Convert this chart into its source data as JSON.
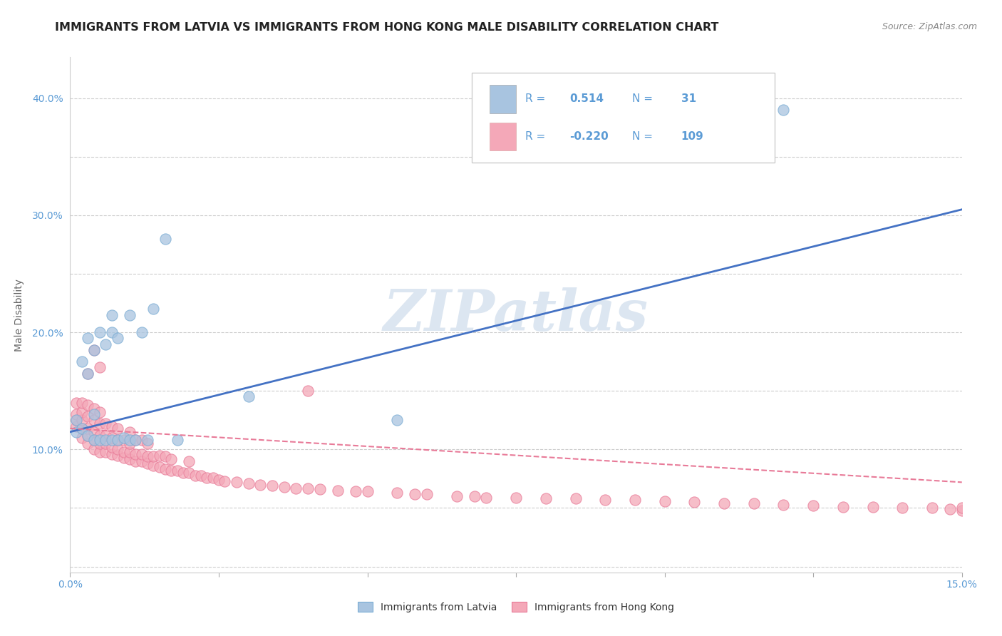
{
  "title": "IMMIGRANTS FROM LATVIA VS IMMIGRANTS FROM HONG KONG MALE DISABILITY CORRELATION CHART",
  "source_text": "Source: ZipAtlas.com",
  "ylabel": "Male Disability",
  "xlim": [
    0.0,
    0.15
  ],
  "ylim": [
    -0.005,
    0.435
  ],
  "xticks": [
    0.0,
    0.025,
    0.05,
    0.075,
    0.1,
    0.125,
    0.15
  ],
  "yticks": [
    0.0,
    0.05,
    0.1,
    0.15,
    0.2,
    0.25,
    0.3,
    0.35,
    0.4
  ],
  "latvia_color": "#a8c4e0",
  "latvia_edge": "#7aadd4",
  "hk_color": "#f4a8b8",
  "hk_edge": "#e87a98",
  "trend_latvia_color": "#4472c4",
  "trend_hk_color": "#e87a98",
  "legend_r_latvia": "0.514",
  "legend_n_latvia": "31",
  "legend_r_hk": "-0.220",
  "legend_n_hk": "109",
  "trend_latvia_x0": 0.0,
  "trend_latvia_y0": 0.115,
  "trend_latvia_x1": 0.15,
  "trend_latvia_y1": 0.305,
  "trend_hk_x0": 0.0,
  "trend_hk_y0": 0.118,
  "trend_hk_x1": 0.15,
  "trend_hk_y1": 0.072,
  "latvia_x": [
    0.001,
    0.001,
    0.002,
    0.002,
    0.003,
    0.003,
    0.003,
    0.004,
    0.004,
    0.004,
    0.005,
    0.005,
    0.006,
    0.006,
    0.007,
    0.007,
    0.007,
    0.008,
    0.008,
    0.009,
    0.01,
    0.01,
    0.011,
    0.012,
    0.013,
    0.014,
    0.016,
    0.018,
    0.03,
    0.055,
    0.12
  ],
  "latvia_y": [
    0.115,
    0.125,
    0.118,
    0.175,
    0.112,
    0.165,
    0.195,
    0.108,
    0.13,
    0.185,
    0.108,
    0.2,
    0.108,
    0.19,
    0.108,
    0.2,
    0.215,
    0.108,
    0.195,
    0.11,
    0.108,
    0.215,
    0.108,
    0.2,
    0.108,
    0.22,
    0.28,
    0.108,
    0.145,
    0.125,
    0.39
  ],
  "hk_x": [
    0.001,
    0.001,
    0.001,
    0.001,
    0.002,
    0.002,
    0.002,
    0.002,
    0.002,
    0.003,
    0.003,
    0.003,
    0.003,
    0.003,
    0.004,
    0.004,
    0.004,
    0.004,
    0.004,
    0.005,
    0.005,
    0.005,
    0.005,
    0.005,
    0.006,
    0.006,
    0.006,
    0.006,
    0.007,
    0.007,
    0.007,
    0.007,
    0.008,
    0.008,
    0.008,
    0.008,
    0.009,
    0.009,
    0.009,
    0.01,
    0.01,
    0.01,
    0.01,
    0.011,
    0.011,
    0.011,
    0.012,
    0.012,
    0.012,
    0.013,
    0.013,
    0.013,
    0.014,
    0.014,
    0.015,
    0.015,
    0.016,
    0.016,
    0.017,
    0.017,
    0.018,
    0.019,
    0.02,
    0.02,
    0.021,
    0.022,
    0.023,
    0.024,
    0.025,
    0.026,
    0.028,
    0.03,
    0.032,
    0.034,
    0.036,
    0.038,
    0.04,
    0.042,
    0.045,
    0.048,
    0.05,
    0.055,
    0.058,
    0.06,
    0.065,
    0.068,
    0.07,
    0.075,
    0.08,
    0.085,
    0.09,
    0.095,
    0.1,
    0.105,
    0.11,
    0.115,
    0.12,
    0.125,
    0.13,
    0.135,
    0.14,
    0.145,
    0.148,
    0.15,
    0.15,
    0.003,
    0.004,
    0.005,
    0.04
  ],
  "hk_y": [
    0.12,
    0.125,
    0.13,
    0.14,
    0.11,
    0.118,
    0.125,
    0.132,
    0.14,
    0.105,
    0.112,
    0.118,
    0.128,
    0.138,
    0.1,
    0.108,
    0.115,
    0.125,
    0.135,
    0.098,
    0.105,
    0.112,
    0.122,
    0.132,
    0.098,
    0.105,
    0.112,
    0.122,
    0.096,
    0.102,
    0.11,
    0.12,
    0.095,
    0.1,
    0.108,
    0.118,
    0.093,
    0.098,
    0.108,
    0.092,
    0.098,
    0.105,
    0.115,
    0.09,
    0.096,
    0.108,
    0.09,
    0.096,
    0.108,
    0.088,
    0.094,
    0.105,
    0.086,
    0.094,
    0.085,
    0.095,
    0.083,
    0.094,
    0.082,
    0.092,
    0.082,
    0.08,
    0.08,
    0.09,
    0.078,
    0.078,
    0.076,
    0.076,
    0.074,
    0.073,
    0.072,
    0.071,
    0.07,
    0.069,
    0.068,
    0.067,
    0.067,
    0.066,
    0.065,
    0.064,
    0.064,
    0.063,
    0.062,
    0.062,
    0.06,
    0.06,
    0.059,
    0.059,
    0.058,
    0.058,
    0.057,
    0.057,
    0.056,
    0.055,
    0.054,
    0.054,
    0.053,
    0.052,
    0.051,
    0.051,
    0.05,
    0.05,
    0.049,
    0.048,
    0.05,
    0.165,
    0.185,
    0.17,
    0.15
  ],
  "background_color": "#ffffff",
  "grid_color": "#cccccc",
  "watermark_text": "ZIPatlas",
  "watermark_color": "#dce6f1",
  "title_fontsize": 11.5,
  "axis_label_fontsize": 10,
  "tick_fontsize": 10,
  "legend_fontsize": 11
}
